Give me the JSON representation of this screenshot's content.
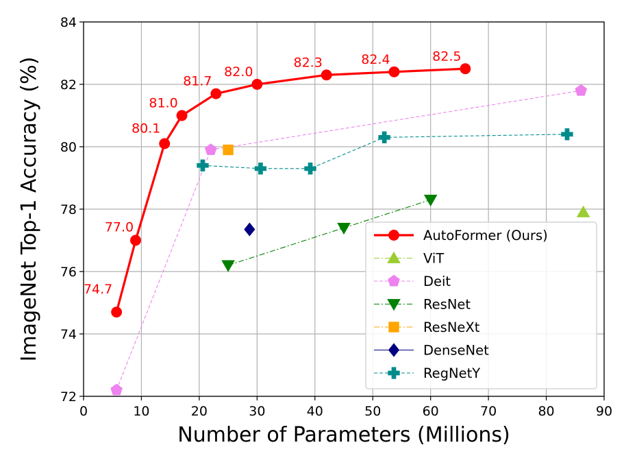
{
  "chart_data": {
    "type": "line",
    "xlabel": "Number of Parameters (Millions)",
    "ylabel": "ImageNet Top-1 Accuracy (%)",
    "xlim": [
      0,
      90
    ],
    "ylim": [
      72,
      84
    ],
    "xticks": [
      0,
      10,
      20,
      30,
      40,
      50,
      60,
      70,
      80,
      90
    ],
    "yticks": [
      72,
      74,
      76,
      78,
      80,
      82,
      84
    ],
    "grid": true,
    "legend_position": "lower-right",
    "series": [
      {
        "name": "AutoFormer (Ours)",
        "color": "#ff0000",
        "marker": "circle",
        "line": "solid",
        "points": [
          [
            5.7,
            74.7
          ],
          [
            9,
            77.0
          ],
          [
            14,
            80.1
          ],
          [
            17,
            81.0
          ],
          [
            22.9,
            81.7
          ],
          [
            30,
            82.0
          ],
          [
            42,
            82.3
          ],
          [
            53.7,
            82.4
          ],
          [
            66,
            82.5
          ]
        ],
        "labels": [
          "74.7",
          "77.0",
          "80.1",
          "81.0",
          "81.7",
          "82.0",
          "82.3",
          "82.4",
          "82.5"
        ]
      },
      {
        "name": "ViT",
        "color": "#9acd32",
        "marker": "triangle-up",
        "line": "dashdot",
        "points": [
          [
            86.4,
            77.9
          ]
        ]
      },
      {
        "name": "Deit",
        "color": "#ee82ee",
        "marker": "pentagon",
        "line": "dashed",
        "points": [
          [
            5.7,
            72.2
          ],
          [
            22,
            79.9
          ],
          [
            86,
            81.8
          ]
        ]
      },
      {
        "name": "ResNet",
        "color": "#008000",
        "marker": "triangle-down",
        "line": "dashdot",
        "points": [
          [
            25,
            76.2
          ],
          [
            45,
            77.4
          ],
          [
            60,
            78.3
          ]
        ]
      },
      {
        "name": "ResNeXt",
        "color": "#ffa500",
        "marker": "square",
        "line": "dashdot",
        "points": [
          [
            25,
            79.9
          ]
        ]
      },
      {
        "name": "DenseNet",
        "color": "#000080",
        "marker": "diamond",
        "line": "solid",
        "points": [
          [
            28.7,
            77.35
          ]
        ]
      },
      {
        "name": "RegNetY",
        "color": "#008b8b",
        "marker": "plus",
        "line": "dashed",
        "points": [
          [
            20.6,
            79.4
          ],
          [
            30.6,
            79.3
          ],
          [
            39.2,
            79.3
          ],
          [
            52,
            80.3
          ],
          [
            83.6,
            80.4
          ]
        ]
      }
    ]
  }
}
